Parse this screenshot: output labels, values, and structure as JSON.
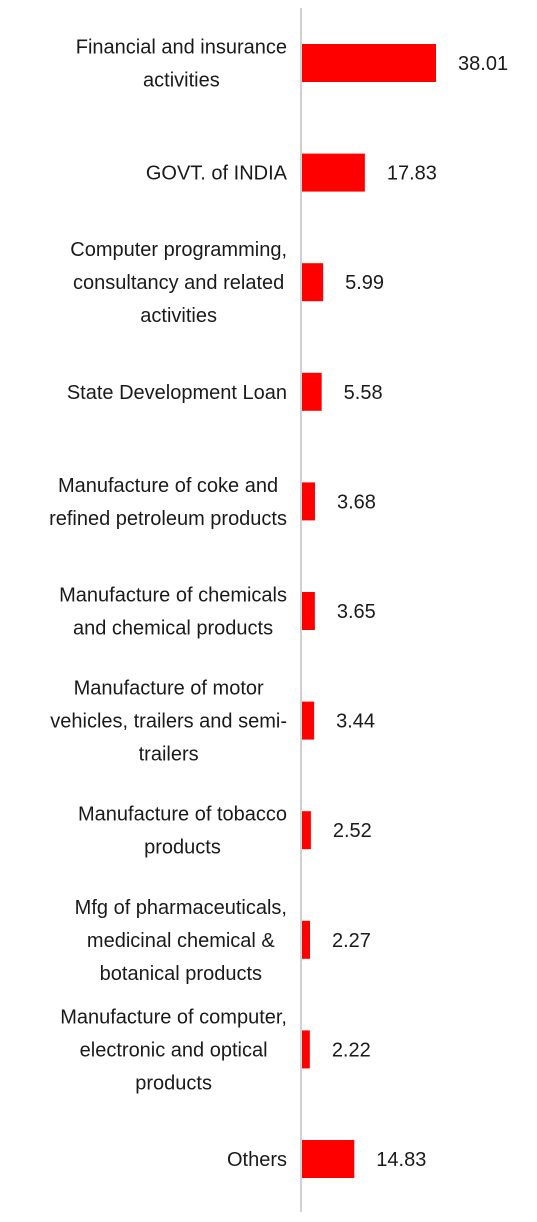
{
  "chart_data": {
    "type": "bar",
    "orientation": "horizontal",
    "categories": [
      "Financial and insurance activities",
      "GOVT. of INDIA",
      "Computer programming, consultancy and related activities",
      "State Development Loan",
      "Manufacture of coke and refined petroleum products",
      "Manufacture of chemicals and chemical products",
      "Manufacture of motor vehicles, trailers and semi-trailers",
      "Manufacture of tobacco products",
      "Mfg of pharmaceuticals, medicinal chemical & botanical products",
      "Manufacture of computer, electronic and optical products",
      "Others"
    ],
    "category_lines": [
      [
        "Financial and insurance",
        "activities"
      ],
      [
        "GOVT. of INDIA"
      ],
      [
        "Computer programming,",
        "consultancy and related",
        "activities"
      ],
      [
        "State Development Loan"
      ],
      [
        "Manufacture of coke and",
        "refined petroleum products"
      ],
      [
        "Manufacture of chemicals",
        "and chemical products"
      ],
      [
        "Manufacture of motor",
        "vehicles, trailers and semi-",
        "trailers"
      ],
      [
        "Manufacture of tobacco",
        "products"
      ],
      [
        "Mfg of pharmaceuticals,",
        "medicinal chemical &",
        "botanical products"
      ],
      [
        "Manufacture of computer,",
        "electronic and optical",
        "products"
      ],
      [
        "Others"
      ]
    ],
    "values": [
      38.01,
      17.83,
      5.99,
      5.58,
      3.68,
      3.65,
      3.44,
      2.52,
      2.27,
      2.22,
      14.83
    ],
    "value_labels": [
      "38.01",
      "17.83",
      "5.99",
      "5.58",
      "3.68",
      "3.65",
      "3.44",
      "2.52",
      "2.27",
      "2.22",
      "14.83"
    ],
    "bar_color": "#ff0000",
    "axis_color": "#d0d0d0",
    "title": "",
    "xlabel": "",
    "ylabel": "",
    "grid": false,
    "legend": "none"
  }
}
